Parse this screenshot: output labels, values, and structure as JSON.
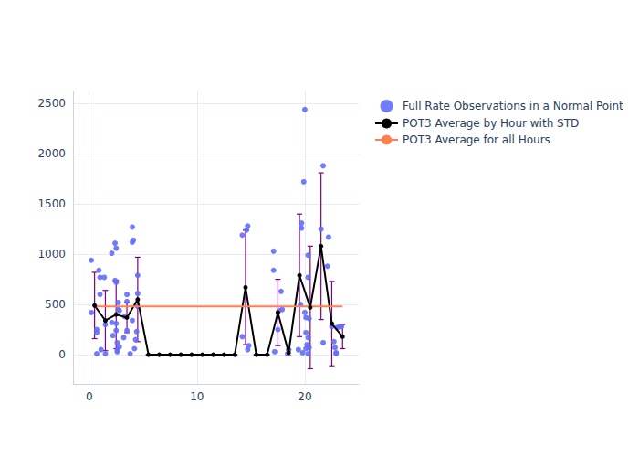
{
  "chart_data": {
    "type": "scatter",
    "xlim": [
      -1.5,
      25
    ],
    "ylim": [
      -290,
      2620
    ],
    "xticks": [
      0,
      10,
      20
    ],
    "yticks": [
      0,
      500,
      1000,
      1500,
      2000,
      2500
    ],
    "grid": true,
    "legend": "right",
    "series": [
      {
        "name": "Full Rate Observations in a Normal Point",
        "type": "scatter",
        "marker": "circle",
        "color": "#636efa",
        "x": [
          0.2,
          0.2,
          0.7,
          0.7,
          0.7,
          0.9,
          1.0,
          1.0,
          1.1,
          1.4,
          1.5,
          1.5,
          2.1,
          2.1,
          2.2,
          2.4,
          2.4,
          2.5,
          2.5,
          2.5,
          2.5,
          2.6,
          2.6,
          2.7,
          2.7,
          2.8,
          2.8,
          2.6,
          3.2,
          3.3,
          3.5,
          3.5,
          3.5,
          3.8,
          4.0,
          4.0,
          4.1,
          4.0,
          4.2,
          4.3,
          4.5,
          4.5,
          4.4,
          4.5,
          14.2,
          14.2,
          14.6,
          14.7,
          14.7,
          14.8,
          17.1,
          17.1,
          17.2,
          17.6,
          17.8,
          17.9,
          17.5,
          18.4,
          18.5,
          19.4,
          19.6,
          19.7,
          19.7,
          19.8,
          19.9,
          20.0,
          20.0,
          20.1,
          20.1,
          20.2,
          20.3,
          20.3,
          20.3,
          20.4,
          20.4,
          20.3,
          20.1,
          21.5,
          21.7,
          21.7,
          22.2,
          22.1,
          22.5,
          22.7,
          22.8,
          22.9,
          22.9,
          23.0,
          23.2,
          23.4
        ],
        "values": [
          940,
          420,
          250,
          220,
          10,
          840,
          770,
          600,
          50,
          770,
          10,
          300,
          1010,
          320,
          190,
          1110,
          740,
          1060,
          720,
          310,
          240,
          120,
          30,
          520,
          450,
          440,
          80,
          50,
          170,
          380,
          600,
          240,
          530,
          10,
          1120,
          1270,
          1140,
          340,
          60,
          150,
          790,
          610,
          230,
          480,
          1190,
          180,
          1240,
          1280,
          50,
          90,
          1030,
          840,
          30,
          440,
          630,
          450,
          250,
          10,
          50,
          50,
          500,
          1310,
          1260,
          20,
          1720,
          2440,
          420,
          370,
          220,
          100,
          990,
          770,
          170,
          360,
          70,
          10,
          60,
          1250,
          1880,
          120,
          1170,
          880,
          280,
          130,
          70,
          20,
          10,
          270,
          280,
          280
        ]
      },
      {
        "name": "POT3 Average by Hour with STD",
        "type": "line",
        "marker": "circle",
        "color": "#000000",
        "x": [
          0.5,
          1.5,
          2.5,
          3.5,
          4.5,
          5.5,
          6.5,
          7.5,
          8.5,
          9.5,
          10.5,
          11.5,
          12.5,
          13.5,
          14.5,
          15.5,
          16.5,
          17.5,
          18.5,
          19.5,
          20.5,
          21.5,
          22.5,
          23.5
        ],
        "values": [
          490,
          340,
          400,
          370,
          550,
          0,
          0,
          0,
          0,
          0,
          0,
          0,
          0,
          0,
          670,
          0,
          0,
          420,
          20,
          790,
          470,
          1080,
          310,
          180
        ],
        "error": [
          330,
          300,
          340,
          150,
          420,
          0,
          0,
          0,
          0,
          0,
          0,
          0,
          0,
          0,
          570,
          0,
          0,
          330,
          30,
          610,
          610,
          730,
          420,
          120
        ]
      },
      {
        "name": "POT3 Average for all Hours",
        "type": "line",
        "color": "#ff7f50",
        "x": [
          0.5,
          23.5
        ],
        "values": [
          480,
          480
        ]
      }
    ]
  }
}
